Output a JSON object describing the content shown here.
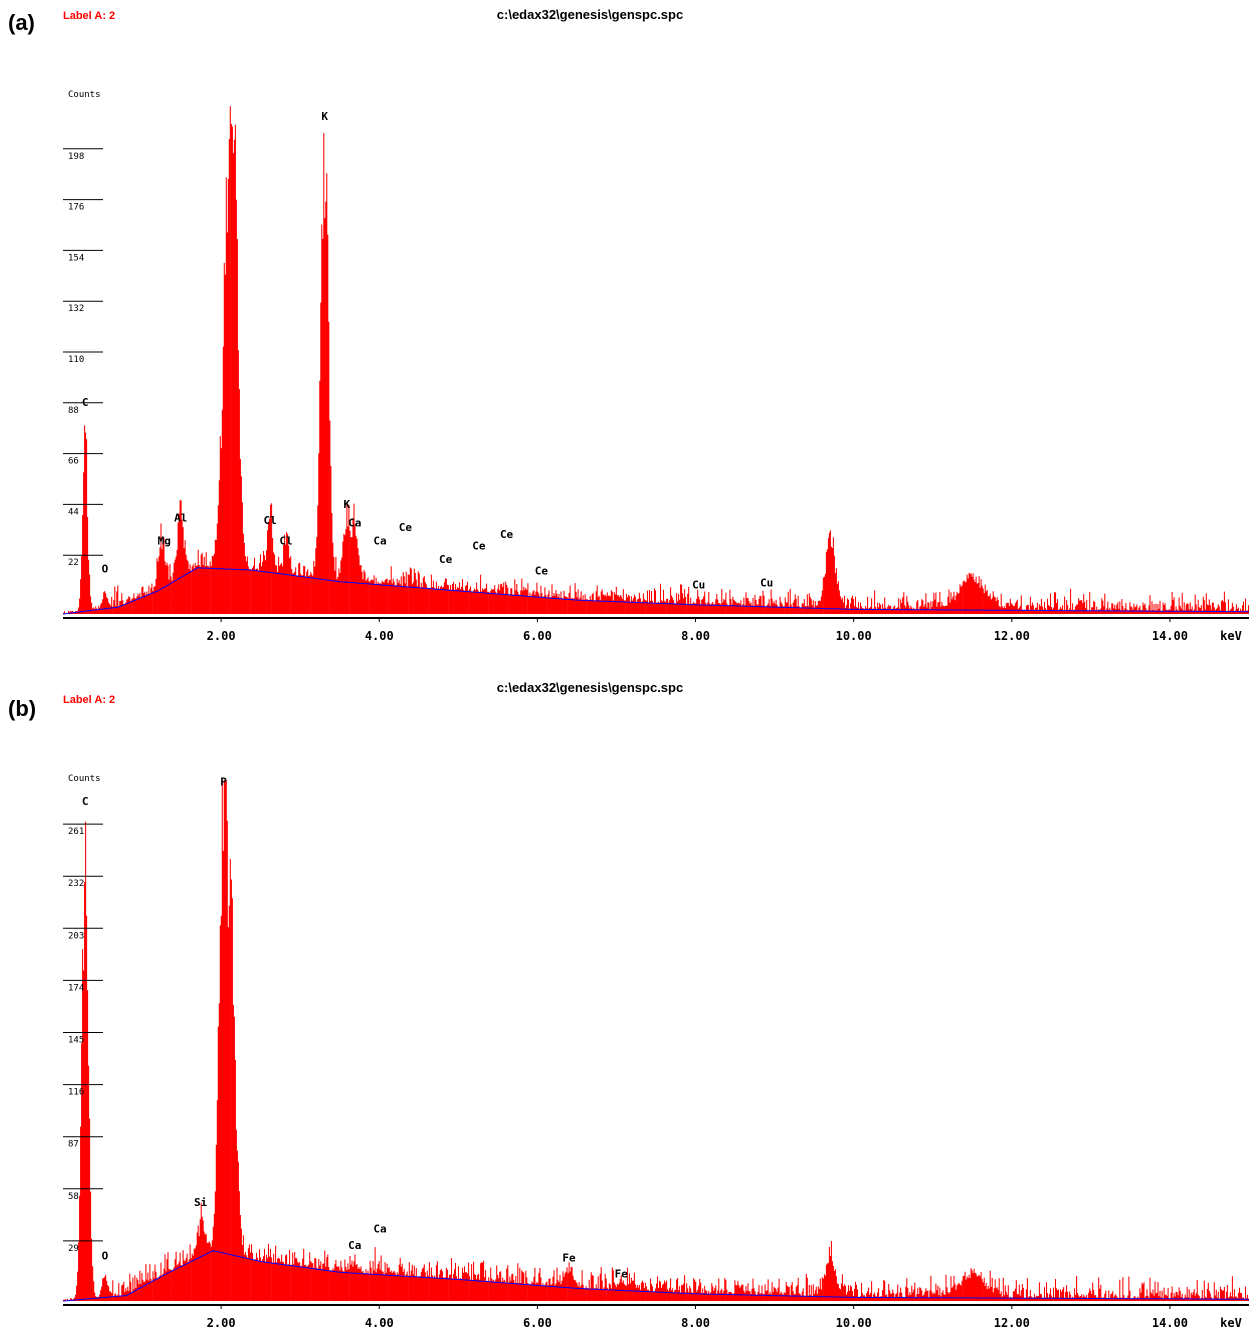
{
  "chart_data": [
    {
      "type": "bar",
      "panel": "(a)",
      "corner_label": "Label A: 2",
      "title": "c:\\edax32\\genesis\\genspc.spc",
      "ylabel": "Counts",
      "xlabel_unit": "keV",
      "xlim": [
        0,
        15
      ],
      "ylim": [
        0,
        220
      ],
      "x_ticks": [
        "2.00",
        "4.00",
        "6.00",
        "8.00",
        "10.00",
        "12.00",
        "14.00"
      ],
      "y_ticks": [
        "22",
        "44",
        "66",
        "88",
        "110",
        "132",
        "154",
        "176",
        "198"
      ],
      "colors": {
        "spectrum": "#ff0000",
        "background_fit": "#0000ff",
        "axis": "#000000"
      },
      "peaks": [
        {
          "kev": 0.28,
          "height": 88,
          "width": 0.03
        },
        {
          "kev": 0.53,
          "height": 8,
          "width": 0.03
        },
        {
          "kev": 1.25,
          "height": 26,
          "width": 0.04
        },
        {
          "kev": 1.49,
          "height": 34,
          "width": 0.04
        },
        {
          "kev": 2.1,
          "height": 175,
          "width": 0.07
        },
        {
          "kev": 2.17,
          "height": 110,
          "width": 0.05
        },
        {
          "kev": 2.62,
          "height": 30,
          "width": 0.03
        },
        {
          "kev": 2.82,
          "height": 22,
          "width": 0.03
        },
        {
          "kev": 3.31,
          "height": 210,
          "width": 0.045
        },
        {
          "kev": 3.59,
          "height": 35,
          "width": 0.04
        },
        {
          "kev": 3.69,
          "height": 30,
          "width": 0.04
        },
        {
          "kev": 9.71,
          "height": 34,
          "width": 0.06
        },
        {
          "kev": 11.5,
          "height": 16,
          "width": 0.15
        }
      ],
      "background": [
        [
          0,
          0
        ],
        [
          0.7,
          3
        ],
        [
          1.2,
          10
        ],
        [
          1.7,
          20
        ],
        [
          2.4,
          19
        ],
        [
          3.5,
          14
        ],
        [
          5.0,
          10
        ],
        [
          6.5,
          6
        ],
        [
          8.0,
          4
        ],
        [
          10.0,
          2
        ],
        [
          15.0,
          1
        ]
      ],
      "noise_amp": 10,
      "element_labels": [
        {
          "text": "C",
          "kev": 0.28,
          "counts": 90
        },
        {
          "text": "O",
          "kev": 0.53,
          "counts": 18
        },
        {
          "text": "Mg",
          "kev": 1.28,
          "counts": 30
        },
        {
          "text": "Al",
          "kev": 1.49,
          "counts": 40
        },
        {
          "text": "Cl",
          "kev": 2.62,
          "counts": 39
        },
        {
          "text": "Cl",
          "kev": 2.82,
          "counts": 30
        },
        {
          "text": "K",
          "kev": 3.31,
          "counts": 214
        },
        {
          "text": "K",
          "kev": 3.59,
          "counts": 46
        },
        {
          "text": "Ca",
          "kev": 3.69,
          "counts": 38
        },
        {
          "text": "Ca",
          "kev": 4.01,
          "counts": 30
        },
        {
          "text": "Ce",
          "kev": 4.33,
          "counts": 36
        },
        {
          "text": "Ce",
          "kev": 4.84,
          "counts": 22
        },
        {
          "text": "Ce",
          "kev": 5.26,
          "counts": 28
        },
        {
          "text": "Ce",
          "kev": 5.61,
          "counts": 33
        },
        {
          "text": "Ce",
          "kev": 6.05,
          "counts": 17
        },
        {
          "text": "Cu",
          "kev": 8.04,
          "counts": 11
        },
        {
          "text": "Cu",
          "kev": 8.9,
          "counts": 12
        }
      ]
    },
    {
      "type": "bar",
      "panel": "(b)",
      "corner_label": "Label A: 2",
      "title": "c:\\edax32\\genesis\\genspc.spc",
      "ylabel": "Counts",
      "xlabel_unit": "keV",
      "xlim": [
        0,
        15
      ],
      "ylim": [
        0,
        290
      ],
      "x_ticks": [
        "2.00",
        "4.00",
        "6.00",
        "8.00",
        "10.00",
        "12.00",
        "14.00"
      ],
      "y_ticks": [
        "29",
        "58",
        "87",
        "116",
        "145",
        "174",
        "203",
        "232",
        "261"
      ],
      "colors": {
        "spectrum": "#ff0000",
        "background_fit": "#0000ff",
        "axis": "#000000"
      },
      "peaks": [
        {
          "kev": 0.28,
          "height": 270,
          "width": 0.04
        },
        {
          "kev": 0.53,
          "height": 15,
          "width": 0.03
        },
        {
          "kev": 1.74,
          "height": 25,
          "width": 0.04
        },
        {
          "kev": 2.03,
          "height": 290,
          "width": 0.05
        },
        {
          "kev": 2.14,
          "height": 170,
          "width": 0.05
        },
        {
          "kev": 3.69,
          "height": 10,
          "width": 0.04
        },
        {
          "kev": 4.01,
          "height": 8,
          "width": 0.04
        },
        {
          "kev": 6.4,
          "height": 12,
          "width": 0.05
        },
        {
          "kev": 7.06,
          "height": 5,
          "width": 0.05
        },
        {
          "kev": 9.71,
          "height": 26,
          "width": 0.06
        },
        {
          "kev": 11.5,
          "height": 14,
          "width": 0.15
        }
      ],
      "background": [
        [
          0,
          0
        ],
        [
          0.8,
          3
        ],
        [
          1.3,
          15
        ],
        [
          1.9,
          28
        ],
        [
          2.5,
          22
        ],
        [
          3.5,
          16
        ],
        [
          5.0,
          12
        ],
        [
          6.5,
          7
        ],
        [
          8.0,
          4
        ],
        [
          10.0,
          2
        ],
        [
          15.0,
          1
        ]
      ],
      "noise_amp": 14,
      "element_labels": [
        {
          "text": "C",
          "kev": 0.28,
          "counts": 276
        },
        {
          "text": "O",
          "kev": 0.53,
          "counts": 23
        },
        {
          "text": "Si",
          "kev": 1.74,
          "counts": 53
        },
        {
          "text": "P",
          "kev": 2.03,
          "counts": 287
        },
        {
          "text": "Ca",
          "kev": 3.69,
          "counts": 29
        },
        {
          "text": "Ca",
          "kev": 4.01,
          "counts": 38
        },
        {
          "text": "Fe",
          "kev": 6.4,
          "counts": 22
        },
        {
          "text": "Fe",
          "kev": 7.06,
          "counts": 13
        }
      ]
    }
  ]
}
